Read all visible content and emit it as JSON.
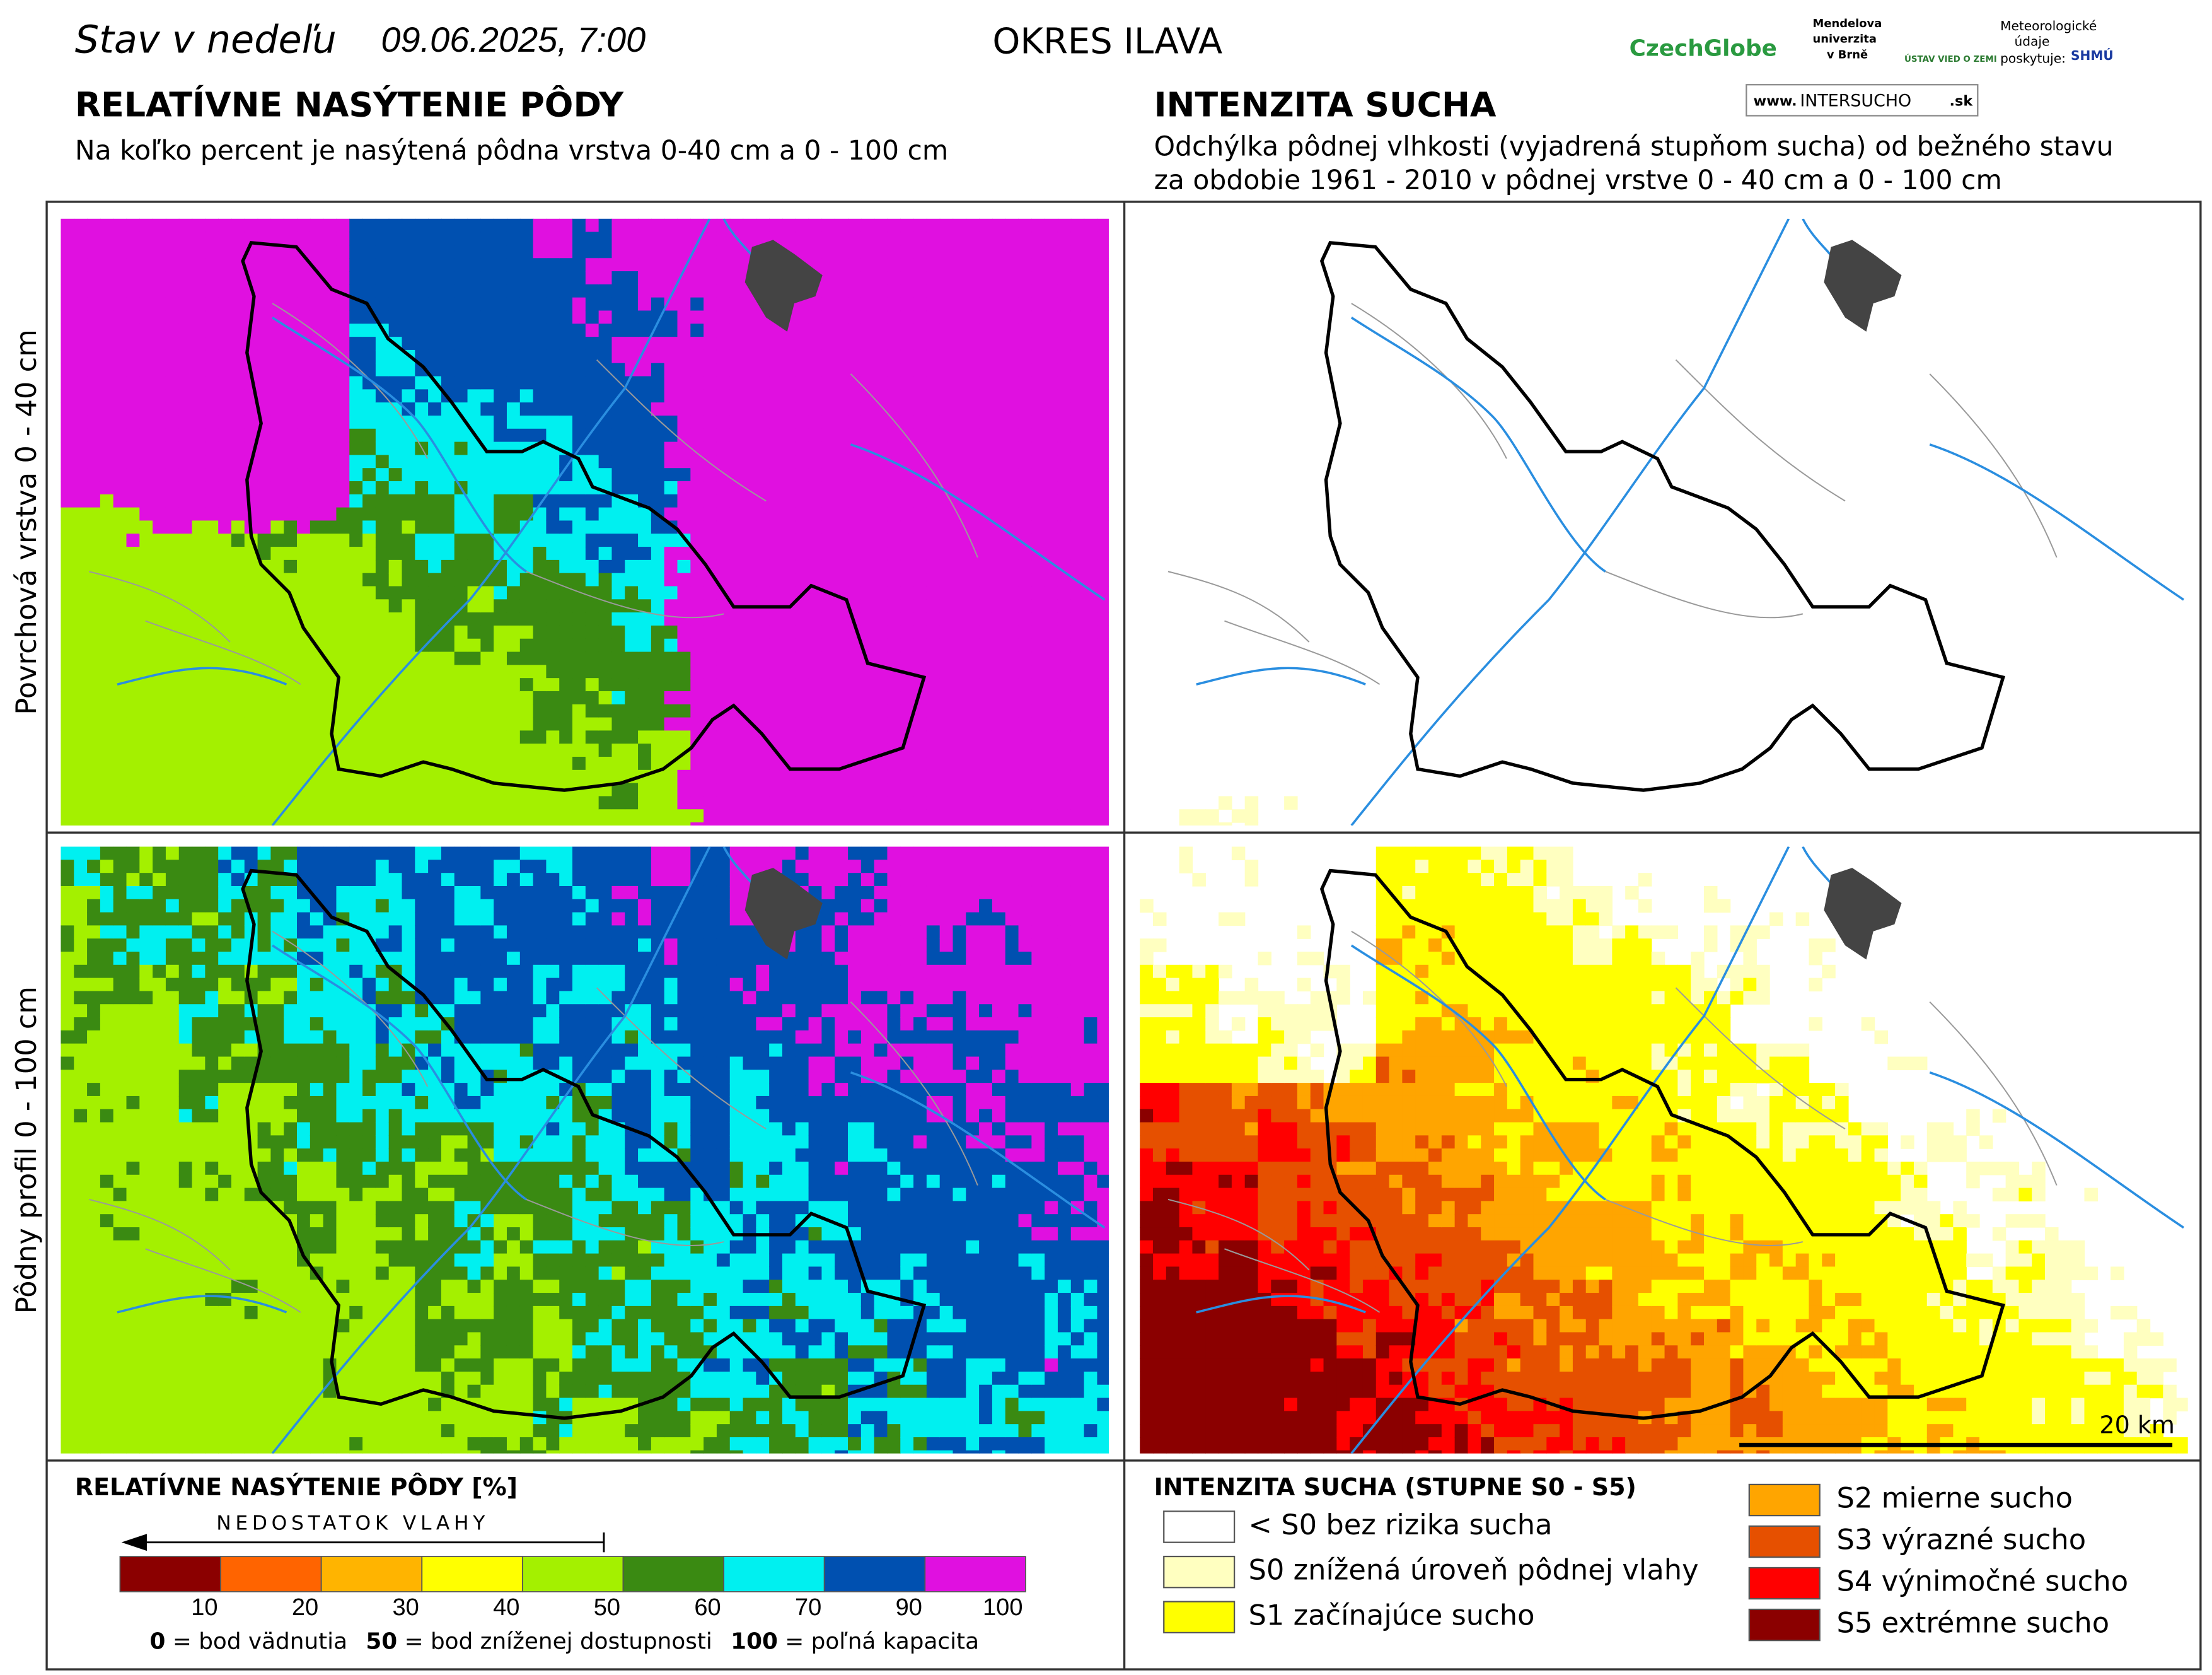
{
  "header": {
    "date_prefix": "Stav v nedeľu",
    "date": "09.06.2025, 7:00",
    "district": "OKRES ILAVA",
    "logos": {
      "czechglobe": "CzechGlobe",
      "mendel": [
        "Mendelova",
        "univerzita",
        "v Brně"
      ],
      "uvz": "ÚSTAV VIED O ZEMI",
      "meteo": [
        "Meteorologické",
        "údaje",
        "poskytuje:"
      ],
      "shmu": "SHMÚ",
      "web": [
        "www.",
        "INTERSUCHO",
        ".sk"
      ]
    }
  },
  "left": {
    "title": "RELATÍVNE NASÝTENIE PÔDY",
    "subtitle": "Na koľko percent je nasýtená pôdna vrstva 0-40 cm a 0 - 100 cm"
  },
  "right": {
    "title": "INTENZITA SUCHA",
    "subtitle": [
      "Odchýlka pôdnej vlhkosti (vyjadrená stupňom sucha) od bežného stavu",
      "za obdobie 1961 - 2010 v pôdnej vrstve 0 - 40 cm a 0 - 100 cm"
    ]
  },
  "row_labels": [
    "Povrchová vrstva 0 - 40 cm",
    "Pôdny profil 0 - 100 cm"
  ],
  "scale_bar": "20 km",
  "legend_saturation": {
    "title": "RELATÍVNE NASÝTENIE PÔDY [%]",
    "arrow": "NEDOSTATOK VLAHY",
    "colors": [
      "#8b0000",
      "#ff6400",
      "#ffb400",
      "#ffff00",
      "#a4f000",
      "#3a8a12",
      "#00f0f0",
      "#0050b0",
      "#e010e0"
    ],
    "ticks": [
      10,
      20,
      30,
      40,
      50,
      60,
      70,
      90,
      100
    ],
    "notes": [
      [
        "0",
        "= bod vädnutia"
      ],
      [
        "50",
        "= bod zníženej dostupnosti"
      ],
      [
        "100",
        "= poľná kapacita"
      ]
    ]
  },
  "legend_drought": {
    "title": "INTENZITA SUCHA (STUPNE S0 - S5)",
    "items": [
      {
        "label": "< S0 bez rizika sucha",
        "color": "#ffffff"
      },
      {
        "label": "S0 znížená úroveň pôdnej vlahy",
        "color": "#ffffc0"
      },
      {
        "label": "S1 začínajúce sucho",
        "color": "#ffff00"
      },
      {
        "label": "S2 mierne sucho",
        "color": "#ffa500"
      },
      {
        "label": "S3 výrazné sucho",
        "color": "#e65000"
      },
      {
        "label": "S4 výnimočné sucho",
        "color": "#ff0000"
      },
      {
        "label": "S5 extrémne sucho",
        "color": "#8b0000"
      }
    ]
  }
}
